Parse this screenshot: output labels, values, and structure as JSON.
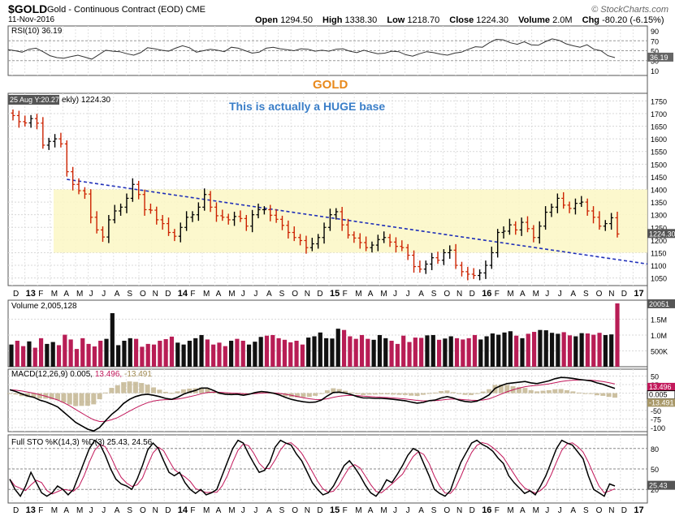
{
  "header": {
    "symbol": "$GOLD",
    "description": "Gold - Continuous Contract (EOD)",
    "exchange": "CME",
    "date": "11-Nov-2016",
    "brand": "© StockCharts.com",
    "open_label": "Open",
    "open": "1294.50",
    "high_label": "High",
    "high": "1338.30",
    "low_label": "Low",
    "low": "1218.70",
    "close_label": "Close",
    "close": "1224.30",
    "volume_label": "Volume",
    "volume": "2.0M",
    "chg_label": "Chg",
    "chg": "-80.20 (-6.15%)",
    "chg_icon": "down-triangle-icon"
  },
  "annotations": {
    "title": "GOLD",
    "note": "This is actually a HUGE base",
    "tooltip": "25 Aug Y:20.27",
    "price_legend": "ekly) 1224.30",
    "colors": {
      "title": "#e8891c",
      "note": "#3a7ec8",
      "base_zone": "#fbf7c4",
      "trendline": "#1f2fb8",
      "up_bar": "#000000",
      "down_bar": "#cc2200"
    }
  },
  "chart_data": [
    {
      "panel": "rsi",
      "type": "line",
      "label": "RSI(10) 36.19",
      "ylim": [
        0,
        100
      ],
      "ticks": [
        "90",
        "70",
        "50",
        "30",
        "10"
      ],
      "current_label": "36.19",
      "values": [
        52,
        50,
        47,
        53,
        55,
        48,
        40,
        36,
        35,
        38,
        41,
        37,
        33,
        42,
        51,
        49,
        48,
        44,
        41,
        46,
        56,
        54,
        51,
        49,
        55,
        60,
        56,
        47,
        50,
        53,
        51,
        48,
        57,
        55,
        50,
        45,
        47,
        55,
        57,
        54,
        52,
        50,
        54,
        53,
        49,
        51,
        49,
        53,
        54,
        49,
        46,
        51,
        47,
        44,
        45,
        49,
        48,
        42,
        39,
        44,
        48,
        46,
        43,
        41,
        45,
        47,
        53,
        58,
        57,
        66,
        73,
        72,
        66,
        63,
        68,
        62,
        61,
        68,
        74,
        71,
        64,
        60,
        57,
        62,
        53,
        50,
        40,
        36
      ]
    },
    {
      "panel": "price",
      "type": "ohlc",
      "title": "GOLD",
      "ylim": [
        1020,
        1780
      ],
      "yticks": [
        1750,
        1700,
        1650,
        1600,
        1550,
        1500,
        1450,
        1400,
        1350,
        1300,
        1250,
        1200,
        1150,
        1100,
        1050
      ],
      "current_label": "1224.30",
      "x_labels": [
        "D",
        "13",
        "F",
        "M",
        "A",
        "M",
        "J",
        "J",
        "A",
        "S",
        "O",
        "N",
        "D",
        "14",
        "F",
        "M",
        "A",
        "M",
        "J",
        "J",
        "A",
        "S",
        "O",
        "N",
        "D",
        "15",
        "F",
        "M",
        "A",
        "M",
        "J",
        "J",
        "A",
        "S",
        "O",
        "N",
        "D",
        "16",
        "F",
        "M",
        "A",
        "M",
        "J",
        "J",
        "A",
        "S",
        "O",
        "N",
        "D",
        "17"
      ],
      "closes": [
        1692,
        1668,
        1663,
        1680,
        1662,
        1575,
        1590,
        1600,
        1580,
        1470,
        1420,
        1395,
        1382,
        1290,
        1240,
        1212,
        1280,
        1315,
        1330,
        1365,
        1420,
        1380,
        1320,
        1318,
        1280,
        1265,
        1230,
        1215,
        1250,
        1290,
        1300,
        1330,
        1380,
        1330,
        1296,
        1290,
        1280,
        1293,
        1285,
        1255,
        1300,
        1320,
        1320,
        1298,
        1282,
        1258,
        1230,
        1210,
        1198,
        1170,
        1185,
        1210,
        1250,
        1300,
        1312,
        1260,
        1220,
        1208,
        1190,
        1170,
        1180,
        1202,
        1210,
        1192,
        1175,
        1170,
        1140,
        1095,
        1085,
        1105,
        1130,
        1120,
        1150,
        1160,
        1100,
        1075,
        1065,
        1060,
        1070,
        1100,
        1150,
        1230,
        1235,
        1260,
        1240,
        1270,
        1245,
        1210,
        1255,
        1310,
        1330,
        1365,
        1338,
        1325,
        1345,
        1350,
        1315,
        1290,
        1255,
        1265,
        1288,
        1224
      ],
      "base_zone": [
        1150,
        1400
      ],
      "trendline": [
        [
          9,
          1440
        ],
        [
          96,
          1140
        ]
      ]
    },
    {
      "panel": "volume",
      "type": "bar",
      "label": "Volume 2,005,128",
      "ylim": [
        0,
        2100000
      ],
      "ticks": [
        "1.5M",
        "1.0M",
        "500K"
      ],
      "current_label": "20051",
      "values": [
        700000,
        820000,
        650000,
        800000,
        600000,
        900000,
        720000,
        780000,
        680000,
        1010000,
        860000,
        560000,
        900000,
        720000,
        640000,
        820000,
        880000,
        1690000,
        680000,
        820000,
        900000,
        880000,
        630000,
        720000,
        700000,
        820000,
        870000,
        950000,
        760000,
        700000,
        820000,
        900000,
        1000000,
        860000,
        700000,
        760000,
        650000,
        820000,
        880000,
        820000,
        700000,
        790000,
        940000,
        980000,
        1000000,
        900000,
        850000,
        770000,
        820000,
        700000,
        920000,
        960000,
        1080000,
        900000,
        890000,
        1200000,
        1160000,
        960000,
        880000,
        1000000,
        880000,
        850000,
        1000000,
        900000,
        820000,
        720000,
        980000,
        780000,
        920000,
        910000,
        990000,
        1000000,
        850000,
        890000,
        960000,
        900000,
        860000,
        900000,
        1000000,
        860000,
        960000,
        1050000,
        1010000,
        1080000,
        1120000,
        980000,
        900000,
        1040000,
        1100000,
        1160000,
        1150000,
        1070000,
        1040000,
        1090000,
        990000,
        960000,
        1060000,
        1050000,
        1010000,
        1070000,
        1000000,
        1020000,
        2000000
      ],
      "up_color": "#111111",
      "down_color": "#b81d55"
    },
    {
      "panel": "macd",
      "type": "line",
      "label": "MACD(12,26,9) 0.005, 13.496, -13.491",
      "label_main": "MACD(12,26,9) 0.005,",
      "label_signal": "13.496,",
      "label_hist": "-13.491",
      "ylim": [
        -112,
        70
      ],
      "ticks": [
        "50",
        "25",
        "-0.005",
        "-25",
        "-50",
        "-75",
        "-100"
      ],
      "current_labels": [
        "13.496",
        "0.005",
        "-13.491"
      ],
      "macd": [
        10,
        5,
        -2,
        -8,
        -12,
        -20,
        -25,
        -32,
        -40,
        -55,
        -70,
        -85,
        -95,
        -105,
        -110,
        -100,
        -80,
        -62,
        -48,
        -30,
        -18,
        -10,
        -5,
        -3,
        -6,
        -10,
        -15,
        -18,
        -12,
        -3,
        3,
        8,
        15,
        15,
        8,
        0,
        -3,
        -4,
        -3,
        -6,
        -3,
        2,
        5,
        3,
        0,
        -5,
        -12,
        -18,
        -22,
        -25,
        -27,
        -26,
        -20,
        -8,
        2,
        3,
        0,
        -4,
        -10,
        -14,
        -14,
        -15,
        -15,
        -16,
        -18,
        -20,
        -22,
        -26,
        -29,
        -27,
        -22,
        -20,
        -14,
        -10,
        -14,
        -20,
        -24,
        -26,
        -23,
        -15,
        -5,
        14,
        22,
        28,
        30,
        32,
        34,
        30,
        28,
        32,
        36,
        42,
        46,
        45,
        43,
        40,
        38,
        36,
        30,
        26,
        20,
        14
      ]
    },
    {
      "panel": "sto",
      "type": "line",
      "label": "Full STO %K(14,3) %D(3) 25.43, 24.56",
      "ylim": [
        0,
        100
      ],
      "ticks": [
        "80",
        "50",
        "20"
      ],
      "current_label": "25.43",
      "k": [
        35,
        20,
        10,
        25,
        45,
        30,
        15,
        10,
        15,
        25,
        20,
        12,
        20,
        40,
        60,
        80,
        92,
        86,
        70,
        50,
        35,
        28,
        25,
        20,
        35,
        55,
        78,
        88,
        80,
        62,
        45,
        40,
        45,
        30,
        20,
        14,
        20,
        12,
        15,
        20,
        40,
        60,
        80,
        92,
        88,
        72,
        58,
        45,
        48,
        60,
        82,
        92,
        88,
        85,
        72,
        62,
        46,
        30,
        20,
        12,
        15,
        25,
        40,
        55,
        62,
        52,
        40,
        26,
        15,
        10,
        20,
        34,
        30,
        42,
        55,
        70,
        80,
        76,
        58,
        40,
        20,
        14,
        10,
        18,
        40,
        60,
        74,
        88,
        92,
        86,
        82,
        76,
        66,
        58,
        40,
        30,
        22,
        14,
        18,
        12,
        25,
        40,
        60,
        80,
        92,
        88,
        85,
        75,
        65,
        40,
        20,
        15,
        10,
        28,
        25
      ]
    }
  ],
  "x_axis_bottom": [
    "D",
    "13",
    "F",
    "M",
    "A",
    "M",
    "J",
    "J",
    "A",
    "S",
    "O",
    "N",
    "D",
    "14",
    "F",
    "M",
    "A",
    "M",
    "J",
    "J",
    "A",
    "S",
    "O",
    "N",
    "D",
    "15",
    "F",
    "M",
    "A",
    "M",
    "J",
    "J",
    "A",
    "S",
    "O",
    "N",
    "D",
    "16",
    "F",
    "M",
    "A",
    "M",
    "J",
    "J",
    "A",
    "S",
    "O",
    "N",
    "D",
    "17"
  ]
}
